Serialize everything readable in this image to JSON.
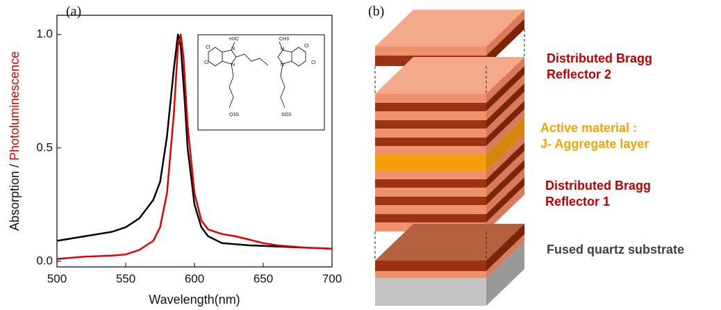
{
  "chart_data": {
    "type": "line",
    "panel": "(a)",
    "xlabel": "Wavelength(nm)",
    "ylabel": [
      "Absorption / ",
      "Photoluminescence"
    ],
    "xlim": [
      500,
      700
    ],
    "ylim": [
      -0.025,
      1.085
    ],
    "xticks": [
      500,
      550,
      600,
      650,
      700
    ],
    "yticks": [
      {
        "value": 0,
        "label": "0.0"
      },
      {
        "value": 0.5,
        "label": "0.5"
      },
      {
        "value": 1,
        "label": "1.0"
      }
    ],
    "series": [
      {
        "color": "#000000",
        "x": [
          500,
          520,
          540,
          550,
          560,
          570,
          575,
          580,
          585,
          588,
          590,
          593,
          595,
          600,
          605,
          610,
          620,
          640,
          660,
          680,
          700
        ],
        "y": [
          0.09,
          0.11,
          0.13,
          0.15,
          0.19,
          0.27,
          0.35,
          0.55,
          0.85,
          1.0,
          0.95,
          0.7,
          0.5,
          0.25,
          0.15,
          0.11,
          0.08,
          0.07,
          0.065,
          0.06,
          0.055
        ]
      },
      {
        "color": "#e00000",
        "x": [
          500,
          520,
          540,
          550,
          560,
          570,
          575,
          580,
          585,
          588,
          590,
          592,
          595,
          600,
          605,
          610,
          620,
          630,
          640,
          650,
          660,
          680,
          700
        ],
        "y": [
          0.01,
          0.02,
          0.025,
          0.03,
          0.05,
          0.09,
          0.15,
          0.3,
          0.65,
          0.95,
          1.0,
          0.9,
          0.6,
          0.3,
          0.18,
          0.14,
          0.12,
          0.11,
          0.095,
          0.08,
          0.07,
          0.06,
          0.055
        ]
      }
    ],
    "inset_labels": [
      "Cl",
      "Cl",
      "Cl",
      "Cl",
      "N",
      "N",
      "N",
      "N",
      "H3C",
      "CH3",
      "O3S",
      "SO3"
    ]
  },
  "diagram": {
    "panel": "(b)",
    "labels": [
      [
        "Distributed Bragg",
        "Reflector 2"
      ],
      [
        "Active material :",
        "J- Aggregate layer"
      ],
      [
        "Distributed Bragg",
        "Reflector 1"
      ],
      [
        "Fused quartz substrate"
      ]
    ]
  }
}
